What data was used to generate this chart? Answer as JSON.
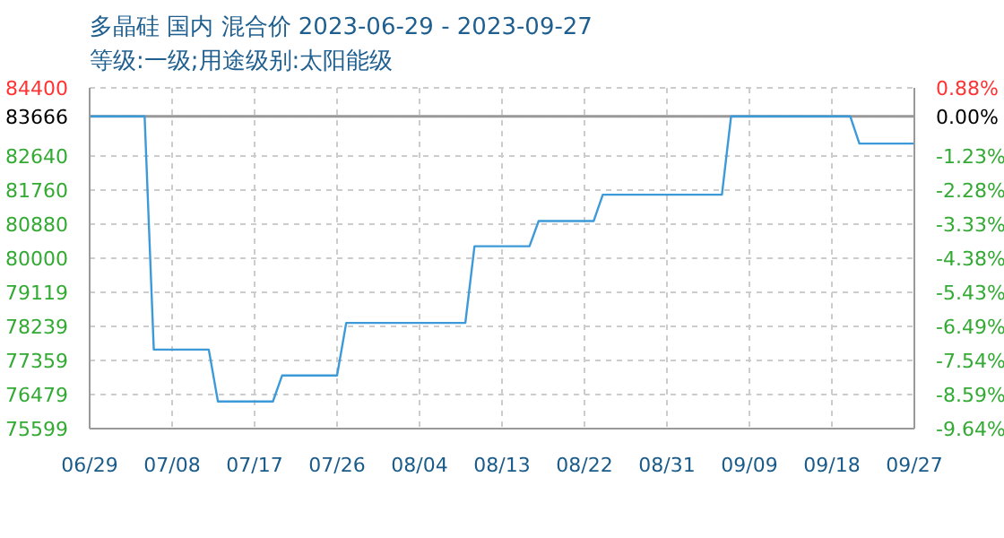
{
  "chart_data": {
    "type": "line",
    "title": "多晶硅 国内 混合价 2023-06-29 - 2023-09-27",
    "subtitle": "等级:一级;用途级别:太阳能级",
    "x": [
      "2023-06-29",
      "2023-07-05",
      "2023-07-06",
      "2023-07-12",
      "2023-07-13",
      "2023-07-19",
      "2023-07-20",
      "2023-07-26",
      "2023-07-27",
      "2023-08-09",
      "2023-08-10",
      "2023-08-16",
      "2023-08-17",
      "2023-08-23",
      "2023-08-24",
      "2023-09-06",
      "2023-09-07",
      "2023-09-20",
      "2023-09-21",
      "2023-09-27"
    ],
    "series": [
      {
        "color": "#3d9ad8",
        "values": [
          83666,
          83666,
          77640,
          77640,
          76300,
          76300,
          76970,
          76970,
          78330,
          78330,
          80310,
          80310,
          80960,
          80960,
          81640,
          81640,
          83666,
          83666,
          82960,
          82960
        ]
      }
    ],
    "xlim": [
      "2023-06-29",
      "2023-09-27"
    ],
    "xticks": [
      {
        "value": "2023-06-29",
        "label": "06/29"
      },
      {
        "value": "2023-07-08",
        "label": "07/08"
      },
      {
        "value": "2023-07-17",
        "label": "07/17"
      },
      {
        "value": "2023-07-26",
        "label": "07/26"
      },
      {
        "value": "2023-08-04",
        "label": "08/04"
      },
      {
        "value": "2023-08-13",
        "label": "08/13"
      },
      {
        "value": "2023-08-22",
        "label": "08/22"
      },
      {
        "value": "2023-08-31",
        "label": "08/31"
      },
      {
        "value": "2023-09-09",
        "label": "09/09"
      },
      {
        "value": "2023-09-18",
        "label": "09/18"
      },
      {
        "value": "2023-09-27",
        "label": "09/27"
      }
    ],
    "ylim": [
      75599,
      84400
    ],
    "yticks": [
      75599,
      76479,
      77359,
      78239,
      79119,
      80000,
      80880,
      81760,
      82640,
      83666,
      84400
    ],
    "y2lim": [
      -9.64,
      0.88
    ],
    "y2ticks": [
      {
        "value": -9.64,
        "label": "-9.64%"
      },
      {
        "value": -8.59,
        "label": "-8.59%"
      },
      {
        "value": -7.54,
        "label": "-7.54%"
      },
      {
        "value": -6.49,
        "label": "-6.49%"
      },
      {
        "value": -5.43,
        "label": "-5.43%"
      },
      {
        "value": -4.38,
        "label": "-4.38%"
      },
      {
        "value": -3.33,
        "label": "-3.33%"
      },
      {
        "value": -2.28,
        "label": "-2.28%"
      },
      {
        "value": -1.23,
        "label": "-1.23%"
      },
      {
        "value": 0,
        "label": "0.00%"
      },
      {
        "value": 0.88,
        "label": "0.88%"
      }
    ],
    "ref_lines": [
      {
        "axis": "y",
        "value": 83666,
        "color": "#999999"
      }
    ],
    "grid": true,
    "marker": "none",
    "line_style": "solid"
  }
}
